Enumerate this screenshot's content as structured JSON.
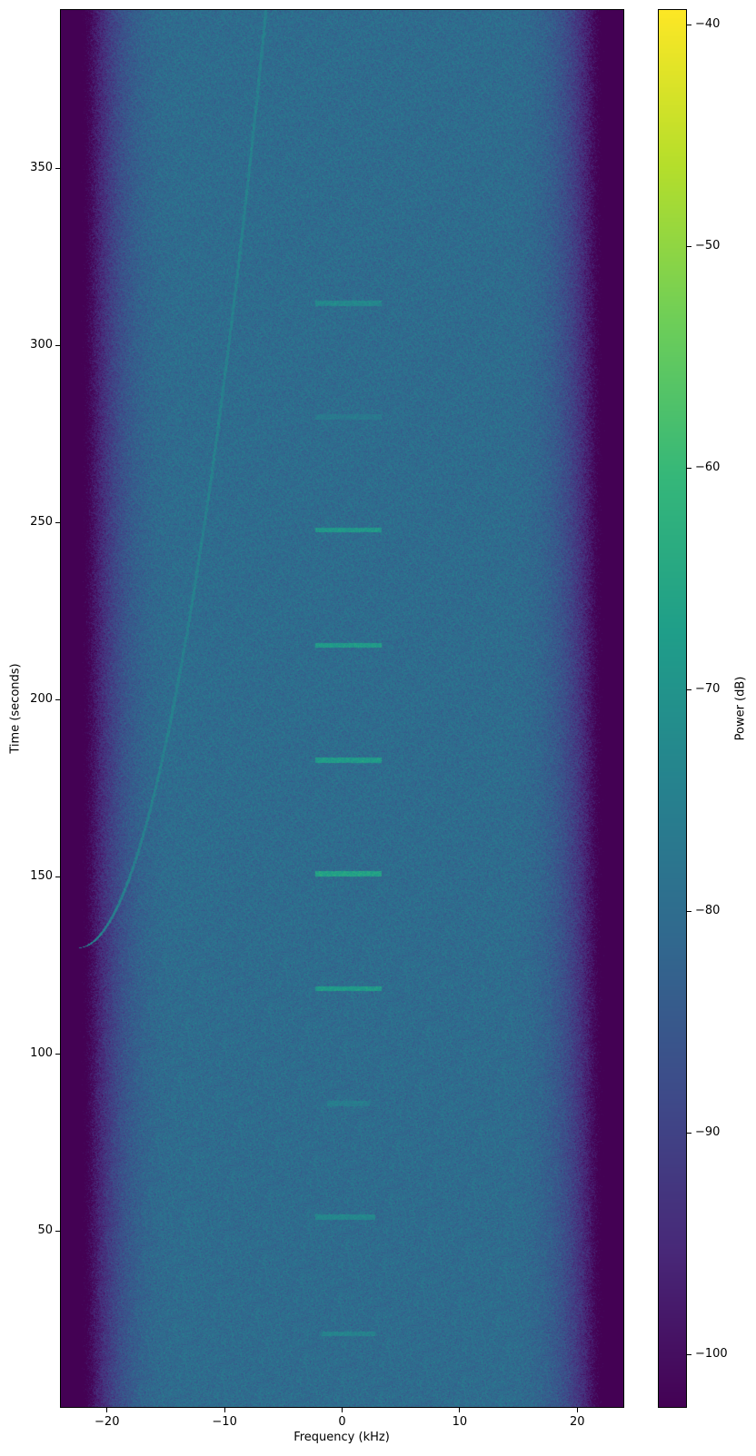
{
  "chart_data": {
    "type": "heatmap",
    "subtype": "spectrogram",
    "title": "",
    "xlabel": "Frequency (kHz)",
    "ylabel": "Time (seconds)",
    "xlim": [
      -24,
      24
    ],
    "ylim": [
      0,
      395
    ],
    "xticks": [
      -20,
      -10,
      0,
      10,
      20
    ],
    "xtick_labels": [
      "−20",
      "−10",
      "0",
      "10",
      "20"
    ],
    "yticks": [
      50,
      100,
      150,
      200,
      250,
      300,
      350
    ],
    "ytick_labels": [
      "50",
      "100",
      "150",
      "200",
      "250",
      "300",
      "350"
    ],
    "colormap": "viridis",
    "colorbar": {
      "label": "Power (dB)",
      "range": [
        -102.4,
        -39.3
      ],
      "ticks": [
        -40,
        -50,
        -60,
        -70,
        -80,
        -90,
        -100
      ],
      "tick_labels": [
        "−40",
        "−50",
        "−60",
        "−70",
        "−80",
        "−90",
        "−100"
      ]
    },
    "background_level_db": -80,
    "band_edge_khz": 22,
    "bursts": [
      {
        "time": 21,
        "f_start": -1.5,
        "f_end": 2.5,
        "level_db": -74
      },
      {
        "time": 54,
        "f_start": -2,
        "f_end": 2.5,
        "level_db": -73
      },
      {
        "time": 86,
        "f_start": -1,
        "f_end": 2,
        "level_db": -76
      },
      {
        "time": 118.5,
        "f_start": -2,
        "f_end": 3,
        "level_db": -68
      },
      {
        "time": 151,
        "f_start": -2,
        "f_end": 3,
        "level_db": -66
      },
      {
        "time": 183,
        "f_start": -2,
        "f_end": 3,
        "level_db": -68
      },
      {
        "time": 215.5,
        "f_start": -2,
        "f_end": 3,
        "level_db": -68
      },
      {
        "time": 248,
        "f_start": -2,
        "f_end": 3,
        "level_db": -69
      },
      {
        "time": 280,
        "f_start": -2,
        "f_end": 3,
        "level_db": -77
      },
      {
        "time": 312,
        "f_start": -2,
        "f_end": 3,
        "level_db": -73
      }
    ],
    "chirp": {
      "f_start": -22.5,
      "t_start": 130,
      "f_end": -6.5,
      "t_end": 395,
      "level_db": -75
    },
    "grid": false
  }
}
